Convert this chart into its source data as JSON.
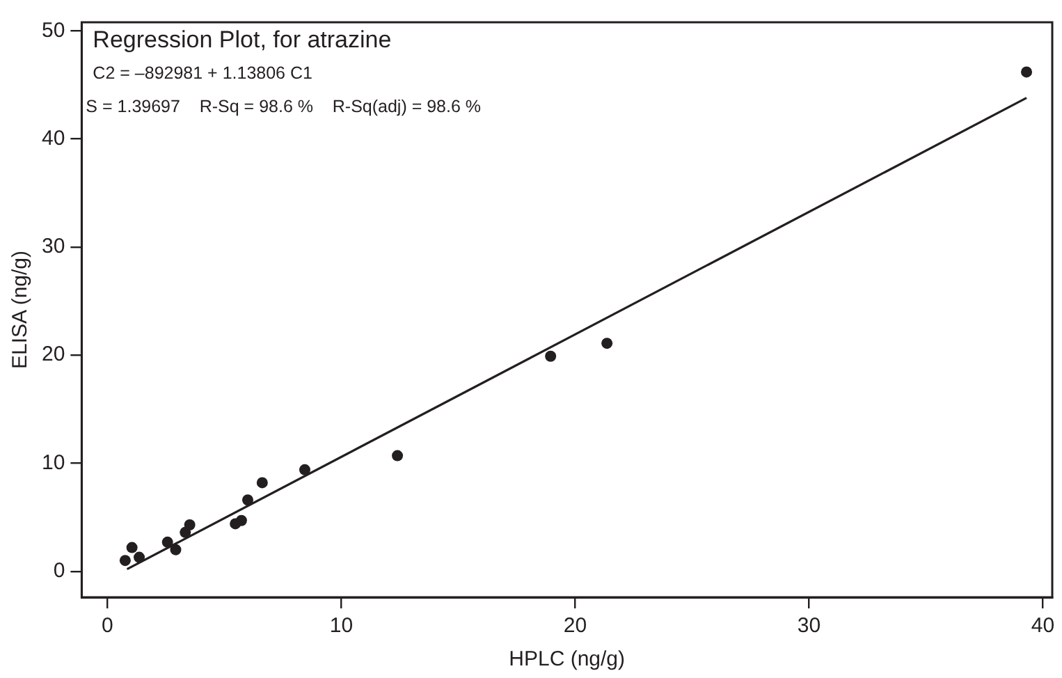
{
  "chart_data": {
    "type": "scatter",
    "title": "Regression Plot, for atrazine",
    "xlabel": "HPLC (ng/g)",
    "ylabel": "ELISA (ng/g)",
    "annotations": [
      "C2 = –892981 + 1.13806 C1",
      "S = 1.39697    R-Sq = 98.6 %    R-Sq(adj) = 98.6 %"
    ],
    "xlim": [
      -1.1,
      40.4
    ],
    "xticks": [
      0,
      10,
      20,
      30,
      40
    ],
    "ylim": [
      -2.4,
      50.8
    ],
    "yticks": [
      0,
      10,
      20,
      30,
      40,
      50
    ],
    "grid": false,
    "legend": false,
    "marker": "circle",
    "series": [
      {
        "type": "scatter",
        "color": "#231f20",
        "x": [
          0.76,
          1.05,
          1.36,
          2.57,
          2.92,
          3.33,
          3.52,
          5.47,
          5.73,
          6.0,
          6.62,
          8.44,
          12.4,
          18.95,
          21.36,
          39.3
        ],
        "values": [
          1.0,
          2.2,
          1.3,
          2.7,
          2.0,
          3.6,
          4.3,
          4.4,
          4.7,
          6.6,
          8.2,
          9.4,
          10.7,
          19.9,
          21.1,
          46.2
        ]
      },
      {
        "type": "line",
        "color": "#231f20",
        "marker": "none",
        "line_style": "solid",
        "x": [
          0.84,
          39.3
        ],
        "values": [
          0.2,
          43.8
        ]
      }
    ]
  }
}
